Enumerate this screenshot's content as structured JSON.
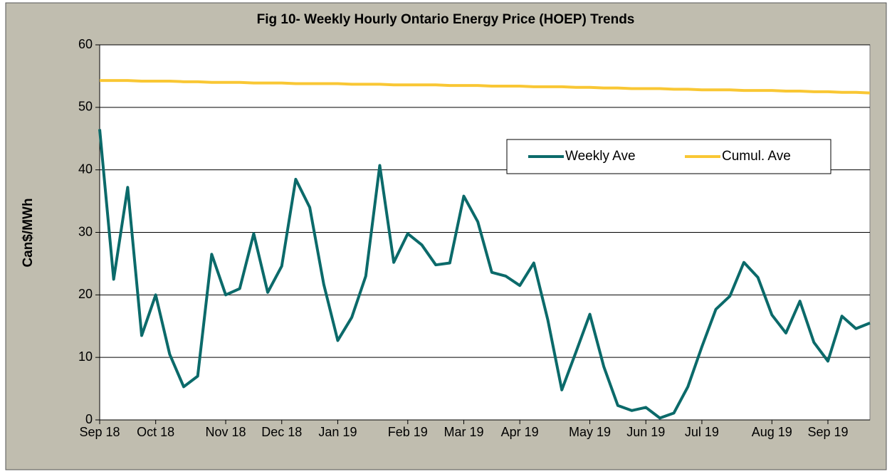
{
  "chart_data": {
    "type": "line",
    "title": "Fig 10- Weekly Hourly Ontario Energy Price (HOEP) Trends",
    "y_label": "Can$/MWh",
    "categories": [
      "Sep 18",
      null,
      null,
      null,
      "Oct 18",
      null,
      null,
      null,
      null,
      "Nov 18",
      null,
      null,
      null,
      "Dec 18",
      null,
      null,
      null,
      "Jan 19",
      null,
      null,
      null,
      null,
      "Feb 19",
      null,
      null,
      null,
      "Mar 19",
      null,
      null,
      null,
      "Apr 19",
      null,
      null,
      null,
      null,
      "May 19",
      null,
      null,
      null,
      "Jun 19",
      null,
      null,
      null,
      "Jul 19",
      null,
      null,
      null,
      null,
      "Aug 19",
      null,
      null,
      null,
      "Sep 19",
      null,
      null,
      null
    ],
    "series": [
      {
        "name": "Weekly Ave",
        "color": "#0b6a6a",
        "values": [
          46.5,
          22.5,
          37.2,
          13.5,
          20,
          10.5,
          5.3,
          7,
          26.5,
          20,
          21,
          29.8,
          20.4,
          24.6,
          38.5,
          34,
          21.7,
          12.7,
          16.4,
          23,
          40.7,
          25.2,
          29.8,
          28,
          24.8,
          25.1,
          35.8,
          31.7,
          23.6,
          23,
          21.5,
          25.1,
          16,
          4.8,
          10.8,
          16.9,
          8.5,
          2.3,
          1.5,
          2,
          0.3,
          1.1,
          5.3,
          11.7,
          17.7,
          19.8,
          25.2,
          22.8,
          16.8,
          13.9,
          19,
          12.4,
          9.4,
          16.6,
          14.6,
          15.5
        ]
      },
      {
        "name": "Cumul. Ave",
        "color": "#f9c734",
        "values": [
          54.3,
          54.3,
          54.3,
          54.2,
          54.2,
          54.2,
          54.1,
          54.1,
          54.0,
          54.0,
          54.0,
          53.9,
          53.9,
          53.9,
          53.8,
          53.8,
          53.8,
          53.8,
          53.7,
          53.7,
          53.7,
          53.6,
          53.6,
          53.6,
          53.6,
          53.5,
          53.5,
          53.5,
          53.4,
          53.4,
          53.4,
          53.3,
          53.3,
          53.3,
          53.2,
          53.2,
          53.1,
          53.1,
          53.0,
          53.0,
          53.0,
          52.9,
          52.9,
          52.8,
          52.8,
          52.8,
          52.7,
          52.7,
          52.7,
          52.6,
          52.6,
          52.5,
          52.5,
          52.4,
          52.4,
          52.3
        ]
      }
    ],
    "ylim": [
      0,
      60
    ],
    "yticks": [
      0,
      10,
      20,
      30,
      40,
      50,
      60
    ],
    "grid": true,
    "legend": "upper right"
  }
}
